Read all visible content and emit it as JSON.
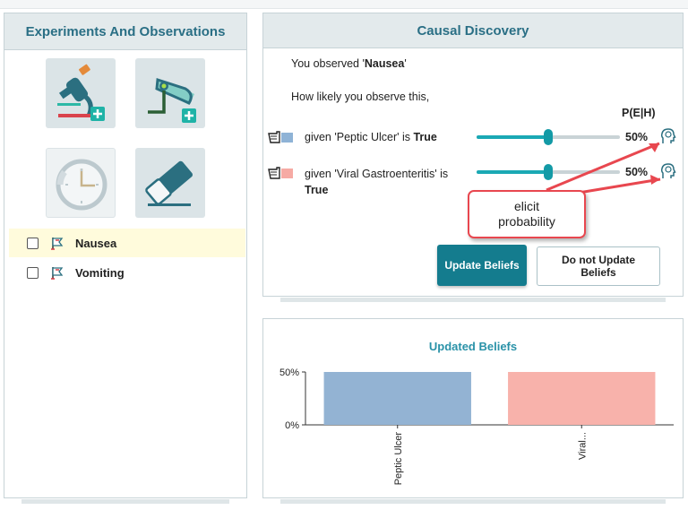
{
  "experiments_panel": {
    "title": "Experiments And Observations",
    "tools": [
      {
        "icon": "microscope-add-icon",
        "enabled": true
      },
      {
        "icon": "sensor-add-icon",
        "enabled": true
      },
      {
        "icon": "clock-icon",
        "enabled": false
      },
      {
        "icon": "eraser-icon",
        "enabled": true
      }
    ],
    "observations": [
      {
        "label": "Nausea",
        "checked": false,
        "selected": true
      },
      {
        "label": "Vomiting",
        "checked": false,
        "selected": false
      }
    ]
  },
  "causal_discovery": {
    "title": "Causal Discovery",
    "observed_prefix": "You observed '",
    "observed_value": "Nausea",
    "observed_suffix": "'",
    "question": "How likely you observe this,",
    "column_header": "P(E|H)",
    "rows": [
      {
        "prefix": "given 'Peptic Ulcer' is ",
        "value": "True",
        "probability": 0.5,
        "display": "50%",
        "color": "#8fb3d6"
      },
      {
        "prefix": "given 'Viral Gastroenteritis' is",
        "value": "True",
        "probability": 0.5,
        "display": "50%",
        "color": "#f6aaa4"
      }
    ],
    "update_button": "Update Beliefs",
    "no_update_button": "Do not Update Beliefs"
  },
  "callout": {
    "line1": "elicit",
    "line2": "probability",
    "color": "#e8474f"
  },
  "updated_beliefs": {
    "title": "Updated Beliefs",
    "chart_data": {
      "type": "bar",
      "categories": [
        "Peptic Ulcer",
        "Viral..."
      ],
      "values": [
        50,
        50
      ],
      "colors": [
        "#93b3d3",
        "#f8b2ab"
      ],
      "ylim": [
        0,
        50
      ],
      "yticks": [
        "50%",
        "0%"
      ],
      "title": "Updated Beliefs"
    }
  }
}
